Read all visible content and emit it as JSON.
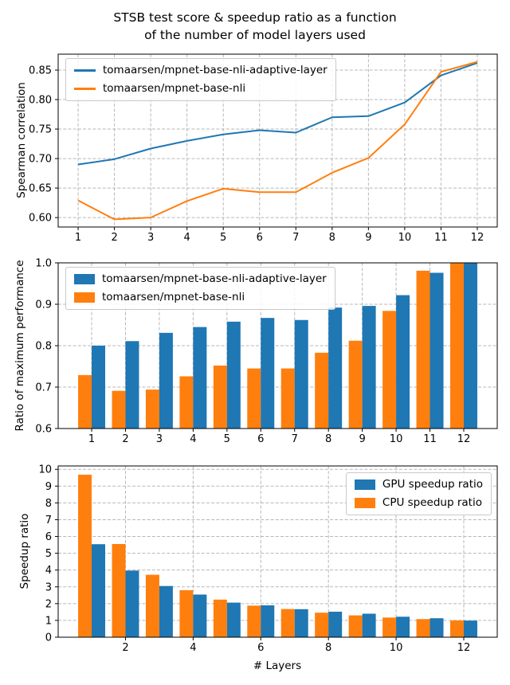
{
  "title": "STSB test score & speedup ratio as a function\nof the number of model layers used",
  "colors": {
    "blue": "#1f77b4",
    "orange": "#ff7f0e",
    "grid": "#b0b0b0"
  },
  "chart_data": [
    {
      "type": "line",
      "ylabel": "Spearman correlation",
      "x": [
        1,
        2,
        3,
        4,
        5,
        6,
        7,
        8,
        9,
        10,
        11,
        12
      ],
      "xlim": [
        0.45,
        12.55
      ],
      "ylim": [
        0.584,
        0.877
      ],
      "xticks": {
        "values": [
          1,
          2,
          3,
          4,
          5,
          6,
          7,
          8,
          9,
          10,
          11,
          12
        ],
        "labels": [
          "1",
          "2",
          "3",
          "4",
          "5",
          "6",
          "7",
          "8",
          "9",
          "10",
          "11",
          "12"
        ]
      },
      "yticks": {
        "values": [
          0.6,
          0.65,
          0.7,
          0.75,
          0.8,
          0.85
        ],
        "labels": [
          "0.60",
          "0.65",
          "0.70",
          "0.75",
          "0.80",
          "0.85"
        ]
      },
      "grid": true,
      "legend_pos": "upper left",
      "series": [
        {
          "name": "tomaarsen/mpnet-base-nli-adaptive-layer",
          "color": "#1f77b4",
          "values": [
            0.69,
            0.699,
            0.717,
            0.73,
            0.741,
            0.748,
            0.744,
            0.77,
            0.772,
            0.795,
            0.841,
            0.862
          ]
        },
        {
          "name": "tomaarsen/mpnet-base-nli",
          "color": "#ff7f0e",
          "values": [
            0.629,
            0.597,
            0.6,
            0.628,
            0.649,
            0.643,
            0.643,
            0.676,
            0.701,
            0.758,
            0.847,
            0.864
          ]
        }
      ]
    },
    {
      "type": "bar",
      "ylabel": "Ratio of maximum performance",
      "categories": [
        1,
        2,
        3,
        4,
        5,
        6,
        7,
        8,
        9,
        10,
        11,
        12
      ],
      "xlim": [
        0.01,
        12.99
      ],
      "ylim": [
        0.6,
        1.0
      ],
      "bar_width": 0.4,
      "xticks": {
        "values": [
          1,
          2,
          3,
          4,
          5,
          6,
          7,
          8,
          9,
          10,
          11,
          12
        ],
        "labels": [
          "1",
          "2",
          "3",
          "4",
          "5",
          "6",
          "7",
          "8",
          "9",
          "10",
          "11",
          "12"
        ]
      },
      "yticks": {
        "values": [
          0.6,
          0.7,
          0.8,
          0.9,
          1.0
        ],
        "labels": [
          "0.6",
          "0.7",
          "0.8",
          "0.9",
          "1.0"
        ]
      },
      "grid": true,
      "legend_pos": "upper left",
      "series": [
        {
          "name": "tomaarsen/mpnet-base-nli-adaptive-layer",
          "color": "#1f77b4",
          "offset": 0.2,
          "values": [
            0.8,
            0.811,
            0.831,
            0.845,
            0.858,
            0.867,
            0.862,
            0.892,
            0.896,
            0.922,
            0.976,
            1.0
          ]
        },
        {
          "name": "tomaarsen/mpnet-base-nli",
          "color": "#ff7f0e",
          "offset": -0.2,
          "values": [
            0.729,
            0.691,
            0.694,
            0.726,
            0.752,
            0.745,
            0.745,
            0.783,
            0.812,
            0.884,
            0.981,
            1.0
          ]
        }
      ]
    },
    {
      "type": "bar",
      "ylabel": "Speedup ratio",
      "xlabel": "# Layers",
      "categories": [
        1,
        2,
        3,
        4,
        5,
        6,
        7,
        8,
        9,
        10,
        11,
        12
      ],
      "xlim": [
        0.01,
        12.99
      ],
      "ylim": [
        0,
        10.2
      ],
      "bar_width": 0.4,
      "xticks": {
        "values": [
          2,
          4,
          6,
          8,
          10,
          12
        ],
        "labels": [
          "2",
          "4",
          "6",
          "8",
          "10",
          "12"
        ]
      },
      "yticks": {
        "values": [
          0,
          1,
          2,
          3,
          4,
          5,
          6,
          7,
          8,
          9,
          10
        ],
        "labels": [
          "0",
          "1",
          "2",
          "3",
          "4",
          "5",
          "6",
          "7",
          "8",
          "9",
          "10"
        ]
      },
      "grid": true,
      "legend_pos": "upper right",
      "series": [
        {
          "name": "GPU speedup ratio",
          "color": "#1f77b4",
          "offset": 0.2,
          "values": [
            5.54,
            3.97,
            3.05,
            2.54,
            2.06,
            1.9,
            1.67,
            1.52,
            1.4,
            1.22,
            1.13,
            0.99
          ]
        },
        {
          "name": "CPU speedup ratio",
          "color": "#ff7f0e",
          "offset": -0.2,
          "values": [
            9.68,
            5.55,
            3.72,
            2.8,
            2.24,
            1.88,
            1.68,
            1.46,
            1.3,
            1.17,
            1.08,
            1.0
          ]
        }
      ]
    }
  ]
}
